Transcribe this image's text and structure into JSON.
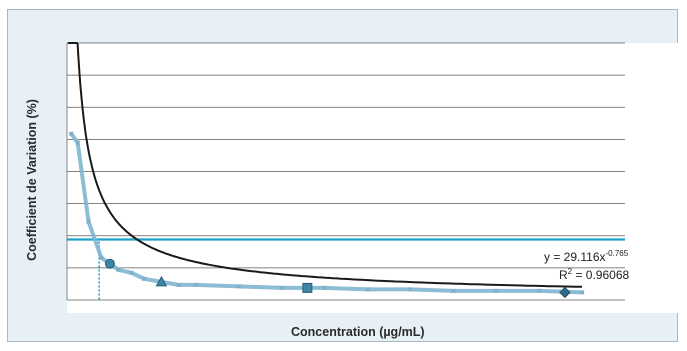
{
  "chart_data": {
    "type": "scatter",
    "title": "",
    "xlabel": "Concentration (µg/mL)",
    "ylabel": "Coefficient de Variation (%)",
    "xlim": [
      0,
      13
    ],
    "ylim": [
      0,
      85
    ],
    "grid": true,
    "colors": {
      "data_line": "#7fb6d2",
      "fit_line": "#1a1a1a",
      "threshold_line": "#1aa3c8",
      "markers": "#3d86a6",
      "frame_bg": "#e6f0f5"
    },
    "series": [
      {
        "values_x": [
          0.1,
          0.25,
          0.5,
          0.8,
          1.0,
          1.2,
          1.5,
          1.8,
          2.2,
          2.6,
          3.0,
          4.0,
          5.0,
          6.0,
          7.0,
          8.0,
          9.0,
          10.0,
          11.0,
          12.0
        ],
        "values_y": [
          55,
          52,
          26,
          14,
          12,
          10,
          9,
          7,
          6,
          5,
          5,
          4.5,
          4,
          4,
          3.5,
          3.5,
          3,
          3,
          3,
          2.5
        ],
        "markers": [
          {
            "x": 1.0,
            "y": 12,
            "shape": "circle"
          },
          {
            "x": 2.2,
            "y": 6,
            "shape": "triangle"
          },
          {
            "x": 5.6,
            "y": 4,
            "shape": "square"
          },
          {
            "x": 11.6,
            "y": 2.5,
            "shape": "diamond"
          }
        ]
      }
    ],
    "trendline": {
      "type": "power",
      "a": 29.116,
      "b": -0.765,
      "equation_prefix": "y = 29.116x",
      "equation_exponent": "-0.765",
      "r2_prefix": "R",
      "r2_exponent": "2",
      "r2_value": " = 0.96068"
    },
    "threshold": {
      "y": 20
    },
    "intersection_x": 0.75
  }
}
